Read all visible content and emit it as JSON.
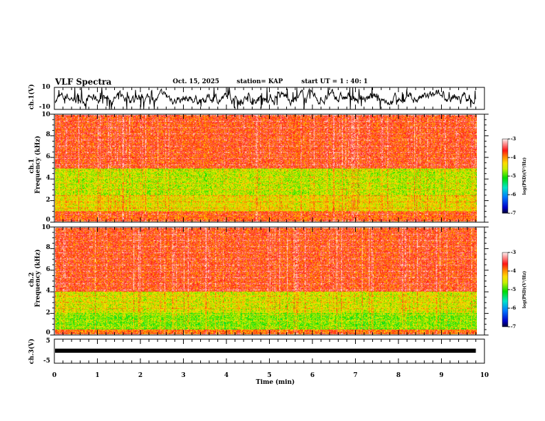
{
  "header": {
    "title": "VLF Spectra",
    "date": "Oct. 15, 2025",
    "station": "station= KAP",
    "start": "start  UT =   1 : 40: 1"
  },
  "chart_data": [
    {
      "type": "line",
      "name": "ch1-waveform",
      "ylabel": "ch.1(V)",
      "ylim": [
        -10,
        10
      ],
      "yticks": [
        "10",
        "-10"
      ],
      "xlim": [
        0,
        10
      ],
      "data_end_min": 9.8,
      "grid": false
    },
    {
      "type": "heatmap",
      "name": "ch1-spectrogram",
      "ylabel": "ch.1\nFrequency  (kHz)",
      "ylabel_lines": [
        "ch.1",
        "Frequency  (kHz)"
      ],
      "ylim": [
        0,
        10
      ],
      "yticks": [
        "0",
        "2",
        "4",
        "6",
        "8",
        "10"
      ],
      "xlim": [
        0,
        10
      ],
      "colorbar": {
        "label": "log(PSD)(V²/Hz)",
        "range": [
          -7,
          -3
        ],
        "ticks": [
          "-3",
          "-4",
          "-5",
          "-6",
          "-7"
        ]
      },
      "bands_kHz": [
        {
          "range": [
            5,
            10
          ],
          "level": -3.7
        },
        {
          "range": [
            2.5,
            5
          ],
          "level": -4.6
        },
        {
          "range": [
            1,
            2.5
          ],
          "level": -4.4
        },
        {
          "range": [
            0,
            1
          ],
          "level": -3.8
        }
      ]
    },
    {
      "type": "heatmap",
      "name": "ch2-spectrogram",
      "ylabel_lines": [
        "ch.2",
        "Frequency  (kHz)"
      ],
      "ylim": [
        0,
        10
      ],
      "yticks": [
        "0",
        "2",
        "4",
        "6",
        "8",
        "10"
      ],
      "xlim": [
        0,
        10
      ],
      "colorbar": {
        "label": "log(PSD)(V²/Hz)",
        "range": [
          -7,
          -3
        ],
        "ticks": [
          "-3",
          "-4",
          "-5",
          "-6",
          "-7"
        ]
      },
      "bands_kHz": [
        {
          "range": [
            4,
            10
          ],
          "level": -3.7
        },
        {
          "range": [
            2,
            4
          ],
          "level": -4.5
        },
        {
          "range": [
            0.5,
            2
          ],
          "level": -4.8
        },
        {
          "range": [
            0,
            0.5
          ],
          "level": -3.9
        }
      ]
    },
    {
      "type": "line",
      "name": "ch3-waveform",
      "ylabel": "ch.3(V)",
      "ylim": [
        -5,
        5
      ],
      "yticks": [
        "5",
        "-5"
      ],
      "constant_value": 0.2,
      "xlim": [
        0,
        10
      ],
      "xlabel": "Time  (min)",
      "xticks": [
        "0",
        "1",
        "2",
        "3",
        "4",
        "5",
        "6",
        "7",
        "8",
        "9",
        "10"
      ]
    }
  ]
}
